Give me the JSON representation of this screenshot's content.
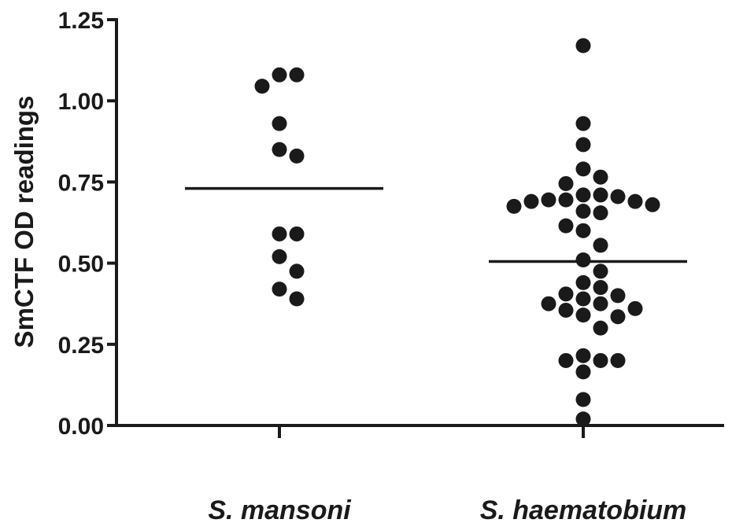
{
  "chart_data": {
    "type": "scatter",
    "ylabel": "SmCTF OD readings",
    "xlabel": "",
    "ylim": [
      0,
      1.25
    ],
    "yticks": [
      "0.00",
      "0.25",
      "0.50",
      "0.75",
      "1.00",
      "1.25"
    ],
    "categories": [
      "S. mansoni",
      "S. haematobium"
    ],
    "series": [
      {
        "category": "S. mansoni",
        "mean": 0.73,
        "points": [
          1.08,
          1.045,
          1.08,
          0.93,
          0.85,
          0.83,
          0.59,
          0.59,
          0.52,
          0.475,
          0.42,
          0.39
        ]
      },
      {
        "category": "S. haematobium",
        "mean": 0.505,
        "points": [
          1.17,
          0.93,
          0.865,
          0.79,
          0.765,
          0.745,
          0.71,
          0.705,
          0.71,
          0.695,
          0.695,
          0.69,
          0.69,
          0.68,
          0.675,
          0.66,
          0.655,
          0.615,
          0.6,
          0.555,
          0.51,
          0.475,
          0.44,
          0.425,
          0.405,
          0.4,
          0.39,
          0.375,
          0.375,
          0.36,
          0.355,
          0.34,
          0.335,
          0.3,
          0.215,
          0.2,
          0.2,
          0.2,
          0.165,
          0.08,
          0.02
        ]
      }
    ],
    "colors": {
      "ink": "#1a1a1a",
      "background": "#ffffff"
    }
  }
}
